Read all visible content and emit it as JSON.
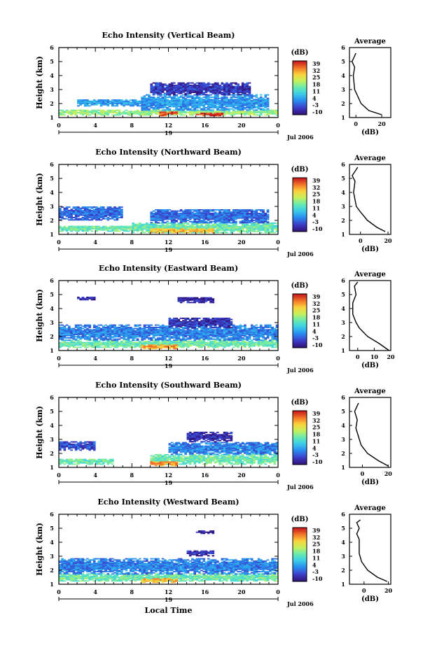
{
  "chart_data": [
    {
      "type": "heatmap",
      "title": "Echo Intensity (Vertical Beam)",
      "ylabel": "Height (km)",
      "ylim": [
        1,
        6
      ],
      "yticks": [
        "1",
        "2",
        "3",
        "4",
        "5",
        "6"
      ],
      "xticks": [
        "0",
        "4",
        "8",
        "12",
        "16",
        "20",
        "0"
      ],
      "xlim": [
        0,
        24
      ],
      "day_label": "19",
      "date_label": "Jul 2006",
      "colorbar": {
        "label": "(dB)",
        "ticks": [
          "39",
          "32",
          "25",
          "18",
          "11",
          "4",
          "-3",
          "-10"
        ],
        "range": [
          -10,
          39
        ]
      },
      "layers": [
        {
          "from": 0,
          "to": 24,
          "base": 1.15,
          "top": 1.5,
          "level": 18
        },
        {
          "from": 2,
          "to": 9,
          "base": 1.8,
          "top": 2.3,
          "level": 4
        },
        {
          "from": 9,
          "to": 23,
          "base": 1.5,
          "top": 2.6,
          "level": 4
        },
        {
          "from": 10,
          "to": 21,
          "base": 2.6,
          "top": 3.5,
          "level": -5
        },
        {
          "from": 11,
          "to": 13,
          "base": 1.1,
          "top": 1.4,
          "level": 35
        },
        {
          "from": 15,
          "to": 18,
          "base": 1.1,
          "top": 1.3,
          "level": 38
        }
      ],
      "profile": {
        "title": "Average",
        "xlabel": "(dB)",
        "xticks": [
          "0",
          "20"
        ],
        "xlim": [
          -5,
          27
        ],
        "points": [
          [
            20,
            1.2
          ],
          [
            10,
            1.5
          ],
          [
            4,
            2.0
          ],
          [
            1,
            2.6
          ],
          [
            -1,
            3.0
          ],
          [
            -2,
            4.0
          ],
          [
            -1,
            4.6
          ],
          [
            -3,
            5.0
          ],
          [
            0,
            5.6
          ]
        ]
      }
    },
    {
      "type": "heatmap",
      "title": "Echo Intensity (Northward Beam)",
      "ylabel": "Height (km)",
      "ylim": [
        1,
        6
      ],
      "yticks": [
        "1",
        "2",
        "3",
        "4",
        "5",
        "6"
      ],
      "xticks": [
        "0",
        "4",
        "8",
        "12",
        "16",
        "20",
        "0"
      ],
      "xlim": [
        0,
        24
      ],
      "day_label": "19",
      "date_label": "Jul 2006",
      "colorbar": {
        "label": "(dB)",
        "ticks": [
          "39",
          "32",
          "25",
          "18",
          "11",
          "4",
          "-3",
          "-10"
        ],
        "range": [
          -10,
          39
        ]
      },
      "layers": [
        {
          "from": 0,
          "to": 9,
          "base": 1.2,
          "top": 1.6,
          "level": 15
        },
        {
          "from": 0,
          "to": 7,
          "base": 2.0,
          "top": 3.0,
          "level": 0
        },
        {
          "from": 8,
          "to": 24,
          "base": 1.1,
          "top": 1.8,
          "level": 15
        },
        {
          "from": 10,
          "to": 23,
          "base": 1.8,
          "top": 2.8,
          "level": 0
        },
        {
          "from": 10,
          "to": 17,
          "base": 1.1,
          "top": 1.4,
          "level": 28
        }
      ],
      "profile": {
        "title": "Average",
        "xlabel": "(dB)",
        "xticks": [
          "0",
          "20"
        ],
        "xlim": [
          -8,
          22
        ],
        "points": [
          [
            18,
            1.2
          ],
          [
            12,
            1.5
          ],
          [
            5,
            2.0
          ],
          [
            0,
            2.6
          ],
          [
            -3,
            3.0
          ],
          [
            -5,
            4.0
          ],
          [
            -4,
            4.8
          ],
          [
            -6,
            5.2
          ],
          [
            -2,
            5.8
          ]
        ]
      }
    },
    {
      "type": "heatmap",
      "title": "Echo Intensity (Eastward Beam)",
      "ylabel": "Height (km)",
      "ylim": [
        1,
        6
      ],
      "yticks": [
        "1",
        "2",
        "3",
        "4",
        "5",
        "6"
      ],
      "xticks": [
        "0",
        "4",
        "8",
        "12",
        "16",
        "20",
        "0"
      ],
      "xlim": [
        0,
        24
      ],
      "day_label": "19",
      "date_label": "Jul 2006",
      "colorbar": {
        "label": "(dB)",
        "ticks": [
          "39",
          "32",
          "25",
          "18",
          "11",
          "4",
          "-3",
          "-10"
        ],
        "range": [
          -10,
          39
        ]
      },
      "layers": [
        {
          "from": 0,
          "to": 24,
          "base": 1.2,
          "top": 1.7,
          "level": 15
        },
        {
          "from": 0,
          "to": 24,
          "base": 1.7,
          "top": 2.8,
          "level": 2
        },
        {
          "from": 12,
          "to": 19,
          "base": 2.6,
          "top": 3.3,
          "level": -5
        },
        {
          "from": 2,
          "to": 4,
          "base": 4.6,
          "top": 4.8,
          "level": -7
        },
        {
          "from": 13,
          "to": 17,
          "base": 4.4,
          "top": 4.8,
          "level": -7
        },
        {
          "from": 9,
          "to": 13,
          "base": 1.1,
          "top": 1.4,
          "level": 30
        }
      ],
      "profile": {
        "title": "Average",
        "xlabel": "(dB)",
        "xticks": [
          "0",
          "10",
          "20"
        ],
        "xlim": [
          -5,
          20
        ],
        "points": [
          [
            19,
            1.0
          ],
          [
            13,
            1.5
          ],
          [
            6,
            2.0
          ],
          [
            1,
            2.6
          ],
          [
            -1,
            3.0
          ],
          [
            -3,
            3.6
          ],
          [
            -3,
            4.4
          ],
          [
            -1,
            5.0
          ],
          [
            -2,
            5.6
          ],
          [
            0,
            5.9
          ]
        ]
      }
    },
    {
      "type": "heatmap",
      "title": "Echo Intensity (Southward Beam)",
      "ylabel": "Height (km)",
      "ylim": [
        1,
        6
      ],
      "yticks": [
        "1",
        "2",
        "3",
        "4",
        "5",
        "6"
      ],
      "xticks": [
        "0",
        "4",
        "8",
        "12",
        "16",
        "20",
        "0"
      ],
      "xlim": [
        0,
        24
      ],
      "day_label": "19",
      "date_label": "Jul 2006",
      "colorbar": {
        "label": "(dB)",
        "ticks": [
          "39",
          "32",
          "25",
          "18",
          "11",
          "4",
          "-3",
          "-10"
        ],
        "range": [
          -10,
          39
        ]
      },
      "layers": [
        {
          "from": 0,
          "to": 6,
          "base": 1.2,
          "top": 1.6,
          "level": 15
        },
        {
          "from": 0,
          "to": 4,
          "base": 2.2,
          "top": 2.8,
          "level": -3
        },
        {
          "from": 10,
          "to": 24,
          "base": 1.2,
          "top": 1.9,
          "level": 15
        },
        {
          "from": 12,
          "to": 24,
          "base": 1.9,
          "top": 2.8,
          "level": 2
        },
        {
          "from": 14,
          "to": 19,
          "base": 2.8,
          "top": 3.5,
          "level": -6
        },
        {
          "from": 10,
          "to": 13,
          "base": 1.1,
          "top": 1.4,
          "level": 30
        }
      ],
      "profile": {
        "title": "Average",
        "xlabel": "(dB)",
        "xticks": [
          "0",
          "20"
        ],
        "xlim": [
          -10,
          22
        ],
        "points": [
          [
            20,
            1.1
          ],
          [
            12,
            1.5
          ],
          [
            4,
            2.0
          ],
          [
            -1,
            2.6
          ],
          [
            -3,
            3.2
          ],
          [
            -5,
            3.8
          ],
          [
            -4,
            4.4
          ],
          [
            -6,
            5.0
          ],
          [
            -3,
            5.6
          ]
        ]
      }
    },
    {
      "type": "heatmap",
      "title": "Echo Intensity (Westward Beam)",
      "ylabel": "Height (km)",
      "ylim": [
        1,
        6
      ],
      "yticks": [
        "1",
        "2",
        "3",
        "4",
        "5",
        "6"
      ],
      "xticks": [
        "0",
        "4",
        "8",
        "12",
        "16",
        "20",
        "0"
      ],
      "xlim": [
        0,
        24
      ],
      "day_label": "19",
      "date_label": "Jul 2006",
      "xlabel": "Local Time",
      "colorbar": {
        "label": "(dB)",
        "ticks": [
          "39",
          "32",
          "25",
          "18",
          "11",
          "4",
          "-3",
          "-10"
        ],
        "range": [
          -10,
          39
        ]
      },
      "layers": [
        {
          "from": 0,
          "to": 24,
          "base": 1.2,
          "top": 1.7,
          "level": 15
        },
        {
          "from": 0,
          "to": 24,
          "base": 1.7,
          "top": 2.8,
          "level": 2
        },
        {
          "from": 14,
          "to": 17,
          "base": 3.0,
          "top": 3.4,
          "level": -6
        },
        {
          "from": 15,
          "to": 17,
          "base": 4.6,
          "top": 4.8,
          "level": -8
        },
        {
          "from": 9,
          "to": 13,
          "base": 1.1,
          "top": 1.4,
          "level": 28
        }
      ],
      "profile": {
        "title": "Average",
        "xlabel": "(dB)",
        "xticks": [
          "0",
          "20"
        ],
        "xlim": [
          -12,
          22
        ],
        "points": [
          [
            19,
            1.2
          ],
          [
            11,
            1.5
          ],
          [
            3,
            2.0
          ],
          [
            -2,
            2.6
          ],
          [
            -4,
            3.2
          ],
          [
            -4,
            4.2
          ],
          [
            -6,
            4.6
          ],
          [
            -4,
            5.0
          ],
          [
            -6,
            5.4
          ],
          [
            -3,
            5.6
          ]
        ]
      }
    }
  ]
}
